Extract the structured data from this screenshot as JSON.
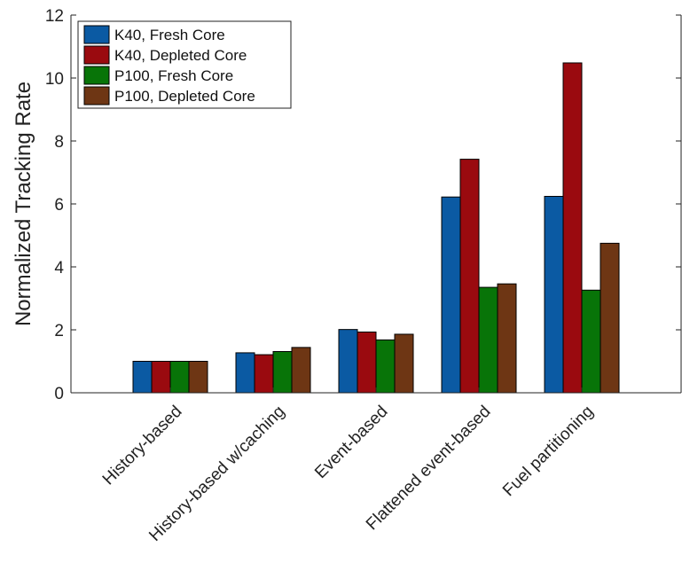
{
  "chart_data": {
    "type": "bar",
    "title": "",
    "xlabel": "",
    "ylabel": "Normalized Tracking Rate",
    "ylim": [
      0,
      12
    ],
    "yticks": [
      0,
      2,
      4,
      6,
      8,
      10,
      12
    ],
    "grid": false,
    "legend_position": "top-left",
    "categories": [
      "History-based",
      "History-based w/caching",
      "Event-based",
      "Flattened event-based",
      "Fuel partitioning"
    ],
    "series": [
      {
        "name": "K40, Fresh Core",
        "color": "#0b5aa3",
        "values": [
          1.0,
          1.27,
          2.01,
          6.22,
          6.24
        ]
      },
      {
        "name": "K40, Depleted Core",
        "color": "#9a0a0f",
        "values": [
          1.0,
          1.21,
          1.93,
          7.42,
          10.48
        ]
      },
      {
        "name": "P100, Fresh Core",
        "color": "#087408",
        "values": [
          1.0,
          1.31,
          1.68,
          3.35,
          3.26
        ]
      },
      {
        "name": "P100, Depleted Core",
        "color": "#6e3614",
        "values": [
          1.0,
          1.44,
          1.86,
          3.46,
          4.75
        ]
      }
    ]
  }
}
